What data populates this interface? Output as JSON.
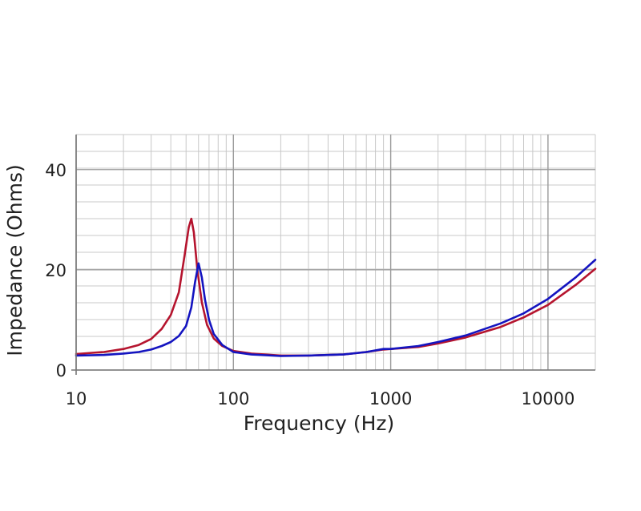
{
  "chart_data": {
    "type": "line",
    "title": "",
    "xlabel": "Frequency (Hz)",
    "ylabel": "Impedance (Ohms)",
    "x_scale": "log",
    "xlim": [
      10,
      20000
    ],
    "ylim": [
      0,
      47
    ],
    "grid": true,
    "legend": "none",
    "x_ticks": [
      10,
      100,
      1000,
      10000
    ],
    "x_tick_labels": [
      "10",
      "100",
      "1000",
      "10000"
    ],
    "y_ticks": [
      0,
      20,
      40
    ],
    "y_tick_labels": [
      "0",
      "20",
      "40"
    ],
    "series": [
      {
        "color": "#b5142e",
        "points": [
          [
            10,
            3.2
          ],
          [
            15,
            3.6
          ],
          [
            20,
            4.2
          ],
          [
            25,
            5.0
          ],
          [
            30,
            6.2
          ],
          [
            35,
            8.2
          ],
          [
            40,
            11.0
          ],
          [
            45,
            15.5
          ],
          [
            49,
            23.0
          ],
          [
            52,
            28.5
          ],
          [
            54,
            30.2
          ],
          [
            56,
            27.5
          ],
          [
            59,
            20.0
          ],
          [
            63,
            13.5
          ],
          [
            68,
            9.0
          ],
          [
            75,
            6.3
          ],
          [
            85,
            4.8
          ],
          [
            100,
            3.8
          ],
          [
            130,
            3.3
          ],
          [
            200,
            2.9
          ],
          [
            300,
            2.9
          ],
          [
            500,
            3.1
          ],
          [
            700,
            3.6
          ],
          [
            900,
            4.1
          ],
          [
            1000,
            4.2
          ],
          [
            1500,
            4.6
          ],
          [
            2000,
            5.3
          ],
          [
            3000,
            6.5
          ],
          [
            5000,
            8.6
          ],
          [
            7000,
            10.5
          ],
          [
            10000,
            13.0
          ],
          [
            15000,
            17.0
          ],
          [
            20000,
            20.2
          ]
        ]
      },
      {
        "color": "#1414c0",
        "points": [
          [
            10,
            2.9
          ],
          [
            15,
            3.0
          ],
          [
            20,
            3.3
          ],
          [
            25,
            3.6
          ],
          [
            30,
            4.1
          ],
          [
            35,
            4.8
          ],
          [
            40,
            5.6
          ],
          [
            45,
            6.8
          ],
          [
            50,
            8.8
          ],
          [
            54,
            12.5
          ],
          [
            57,
            17.5
          ],
          [
            60,
            21.3
          ],
          [
            63,
            18.5
          ],
          [
            66,
            14.0
          ],
          [
            70,
            10.0
          ],
          [
            75,
            7.2
          ],
          [
            85,
            5.0
          ],
          [
            100,
            3.6
          ],
          [
            130,
            3.1
          ],
          [
            200,
            2.8
          ],
          [
            300,
            2.9
          ],
          [
            500,
            3.1
          ],
          [
            700,
            3.6
          ],
          [
            900,
            4.2
          ],
          [
            1000,
            4.2
          ],
          [
            1500,
            4.8
          ],
          [
            2000,
            5.6
          ],
          [
            3000,
            6.9
          ],
          [
            5000,
            9.3
          ],
          [
            7000,
            11.3
          ],
          [
            10000,
            14.2
          ],
          [
            15000,
            18.5
          ],
          [
            20000,
            22.0
          ]
        ]
      }
    ]
  }
}
